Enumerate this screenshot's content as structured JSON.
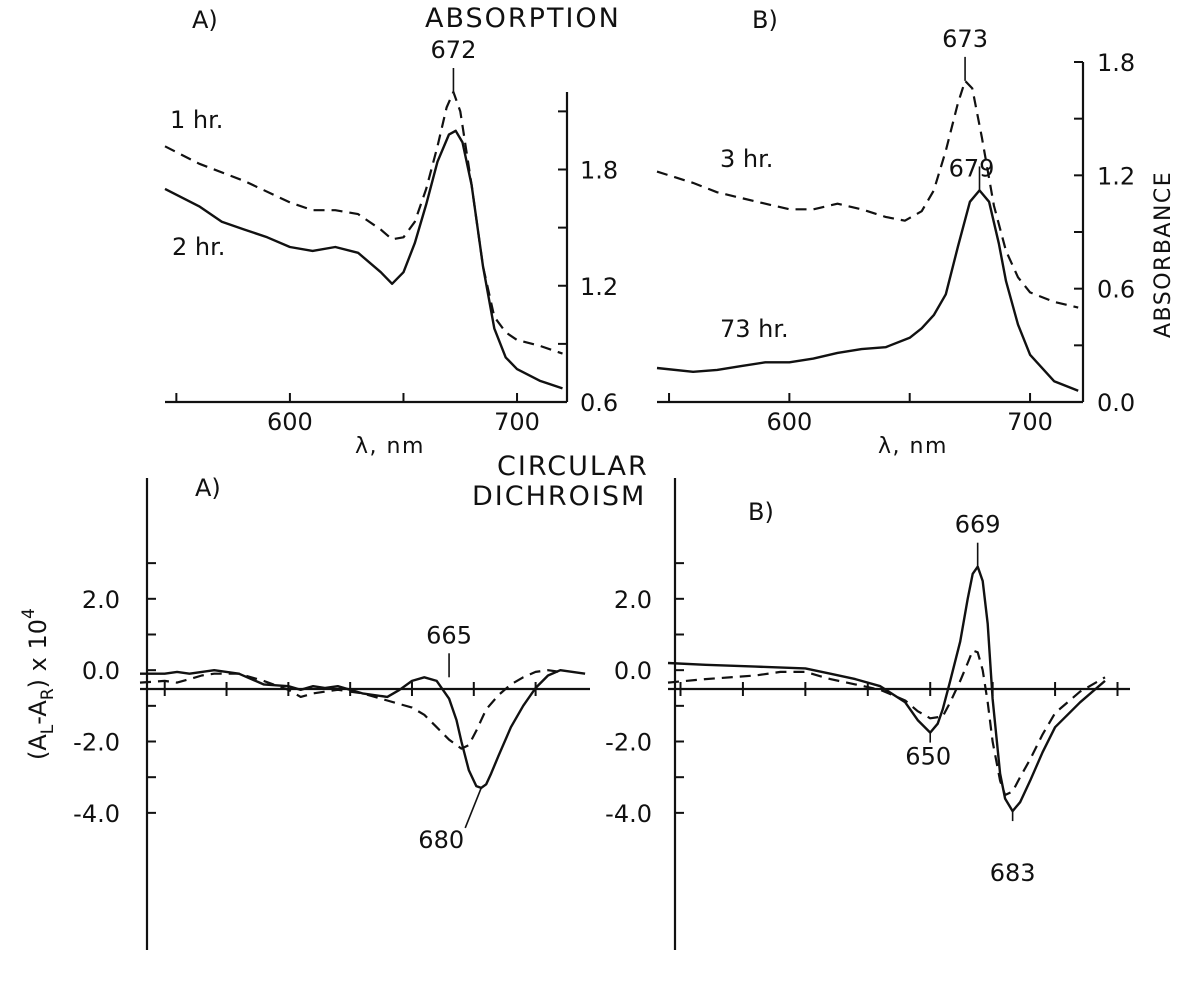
{
  "headings": {
    "absorption": "ABSORPTION",
    "cd_line1": "CIRCULAR",
    "cd_line2": "DICHROISM"
  },
  "chart_data": [
    {
      "type": "line",
      "panel": "A)",
      "title": "ABSORPTION",
      "xlabel": "λ, nm",
      "xlim": [
        545,
        722
      ],
      "ylim": [
        0.6,
        2.2
      ],
      "x_ticks": [
        "600",
        "700"
      ],
      "y_ticks": [
        "0.6",
        "1.2",
        "1.8"
      ],
      "series": [
        {
          "name": "1 hr.",
          "style": "dashed",
          "x": [
            545,
            560,
            580,
            600,
            610,
            620,
            630,
            640,
            645,
            650,
            655,
            660,
            665,
            669,
            672,
            675,
            680,
            685,
            690,
            695,
            700,
            710,
            720
          ],
          "y": [
            1.92,
            1.83,
            1.74,
            1.63,
            1.59,
            1.59,
            1.57,
            1.49,
            1.44,
            1.45,
            1.53,
            1.7,
            1.92,
            2.12,
            2.2,
            2.1,
            1.72,
            1.3,
            1.04,
            0.96,
            0.92,
            0.89,
            0.85
          ]
        },
        {
          "name": "2 hr.",
          "style": "solid",
          "x": [
            545,
            560,
            570,
            580,
            590,
            600,
            610,
            620,
            630,
            640,
            645,
            650,
            655,
            660,
            665,
            670,
            673,
            676,
            680,
            685,
            690,
            695,
            700,
            710,
            720
          ],
          "y": [
            1.7,
            1.61,
            1.53,
            1.49,
            1.45,
            1.4,
            1.38,
            1.4,
            1.37,
            1.27,
            1.21,
            1.27,
            1.42,
            1.62,
            1.84,
            1.98,
            2.0,
            1.94,
            1.72,
            1.3,
            0.98,
            0.83,
            0.77,
            0.71,
            0.67
          ]
        }
      ],
      "peak_labels": [
        {
          "text": "672",
          "x": 672,
          "y": 2.2
        }
      ]
    },
    {
      "type": "line",
      "panel": "B)",
      "xlabel": "λ, nm",
      "ylabel": "ABSORBANCE",
      "xlim": [
        545,
        722
      ],
      "ylim": [
        0.0,
        1.8
      ],
      "x_ticks": [
        "600",
        "700"
      ],
      "y_ticks": [
        "0.0",
        "0.6",
        "1.2",
        "1.8"
      ],
      "series": [
        {
          "name": "3 hr.",
          "style": "dashed",
          "x": [
            545,
            560,
            570,
            580,
            590,
            600,
            610,
            620,
            630,
            640,
            648,
            655,
            660,
            665,
            670,
            673,
            676,
            680,
            685,
            690,
            695,
            700,
            710,
            720
          ],
          "y": [
            1.22,
            1.16,
            1.11,
            1.08,
            1.05,
            1.02,
            1.02,
            1.05,
            1.02,
            0.98,
            0.96,
            1.01,
            1.12,
            1.33,
            1.58,
            1.7,
            1.66,
            1.4,
            1.04,
            0.8,
            0.66,
            0.58,
            0.53,
            0.5
          ]
        },
        {
          "name": "73 hr.",
          "style": "solid",
          "x": [
            545,
            560,
            570,
            580,
            590,
            600,
            610,
            620,
            630,
            640,
            650,
            655,
            660,
            665,
            670,
            675,
            679,
            683,
            687,
            690,
            695,
            700,
            710,
            720
          ],
          "y": [
            0.18,
            0.16,
            0.17,
            0.19,
            0.21,
            0.21,
            0.23,
            0.26,
            0.28,
            0.29,
            0.34,
            0.39,
            0.46,
            0.57,
            0.82,
            1.06,
            1.12,
            1.06,
            0.84,
            0.64,
            0.41,
            0.25,
            0.11,
            0.06
          ]
        }
      ],
      "peak_labels": [
        {
          "text": "673",
          "x": 673,
          "y": 1.7
        },
        {
          "text": "679",
          "x": 679,
          "y": 1.12
        }
      ]
    },
    {
      "type": "line",
      "panel": "A)",
      "title": "CIRCULAR DICHROISM",
      "ylabel": "(A_L-A_R) x 10^4",
      "xlim": [
        540,
        722
      ],
      "ylim": [
        -4.2,
        3.2
      ],
      "y_ticks": [
        "2.0",
        "0.0",
        "-2.0",
        "-4.0"
      ],
      "series": [
        {
          "name": "solid",
          "style": "solid",
          "x": [
            540,
            550,
            555,
            560,
            570,
            580,
            590,
            600,
            605,
            610,
            615,
            620,
            625,
            630,
            640,
            645,
            650,
            655,
            660,
            665,
            668,
            670,
            673,
            676,
            678,
            680,
            682,
            685,
            690,
            695,
            700,
            705,
            710,
            715,
            720
          ],
          "y": [
            -0.1,
            -0.1,
            -0.05,
            -0.1,
            0.0,
            -0.1,
            -0.4,
            -0.45,
            -0.55,
            -0.45,
            -0.5,
            -0.45,
            -0.55,
            -0.65,
            -0.75,
            -0.55,
            -0.3,
            -0.2,
            -0.3,
            -0.8,
            -1.4,
            -2.0,
            -2.8,
            -3.25,
            -3.3,
            -3.2,
            -2.9,
            -2.4,
            -1.6,
            -1.0,
            -0.5,
            -0.15,
            0.0,
            -0.05,
            -0.1
          ]
        },
        {
          "name": "dashed",
          "style": "dashed",
          "x": [
            540,
            550,
            555,
            560,
            565,
            570,
            580,
            590,
            600,
            605,
            610,
            620,
            630,
            640,
            650,
            655,
            660,
            665,
            670,
            673,
            676,
            678,
            680,
            685,
            690,
            695,
            700,
            705,
            710
          ],
          "y": [
            -0.35,
            -0.3,
            -0.35,
            -0.25,
            -0.15,
            -0.1,
            -0.1,
            -0.3,
            -0.55,
            -0.75,
            -0.65,
            -0.55,
            -0.65,
            -0.85,
            -1.05,
            -1.25,
            -1.6,
            -1.95,
            -2.2,
            -2.1,
            -1.7,
            -1.4,
            -1.1,
            -0.7,
            -0.4,
            -0.2,
            -0.05,
            0.0,
            -0.05
          ]
        }
      ],
      "peak_labels": [
        {
          "text": "665",
          "x": 665,
          "y": -0.2
        },
        {
          "text": "680",
          "x": 678,
          "y": -3.3
        }
      ]
    },
    {
      "type": "line",
      "panel": "B)",
      "xlim": [
        545,
        730
      ],
      "ylim": [
        -4.2,
        3.2
      ],
      "y_ticks": [
        "2.0",
        "0.0",
        "-2.0",
        "-4.0"
      ],
      "series": [
        {
          "name": "solid",
          "style": "solid",
          "x": [
            545,
            560,
            580,
            600,
            610,
            620,
            630,
            640,
            645,
            650,
            653,
            655,
            658,
            662,
            665,
            667,
            669,
            671,
            673,
            675,
            678,
            680,
            683,
            686,
            690,
            695,
            700,
            710,
            720
          ],
          "y": [
            0.2,
            0.15,
            0.1,
            0.05,
            -0.1,
            -0.25,
            -0.45,
            -0.9,
            -1.4,
            -1.75,
            -1.5,
            -1.1,
            -0.3,
            0.8,
            2.0,
            2.7,
            2.9,
            2.5,
            1.3,
            -0.8,
            -2.9,
            -3.6,
            -3.95,
            -3.7,
            -3.1,
            -2.3,
            -1.6,
            -0.9,
            -0.3
          ]
        },
        {
          "name": "dashed",
          "style": "dashed",
          "x": [
            545,
            560,
            580,
            590,
            600,
            610,
            620,
            630,
            640,
            645,
            650,
            655,
            658,
            662,
            665,
            667,
            669,
            671,
            673,
            675,
            678,
            680,
            683,
            686,
            690,
            695,
            700,
            710,
            720
          ],
          "y": [
            -0.35,
            -0.25,
            -0.15,
            -0.05,
            -0.05,
            -0.25,
            -0.4,
            -0.55,
            -0.85,
            -1.15,
            -1.35,
            -1.3,
            -0.9,
            -0.3,
            0.2,
            0.55,
            0.5,
            0.0,
            -0.9,
            -2.0,
            -3.1,
            -3.5,
            -3.4,
            -3.0,
            -2.5,
            -1.8,
            -1.2,
            -0.6,
            -0.2
          ]
        }
      ],
      "peak_labels": [
        {
          "text": "669",
          "x": 669,
          "y": 2.9
        },
        {
          "text": "650",
          "x": 650,
          "y": -1.75
        },
        {
          "text": "683",
          "x": 683,
          "y": -3.95
        }
      ]
    }
  ]
}
